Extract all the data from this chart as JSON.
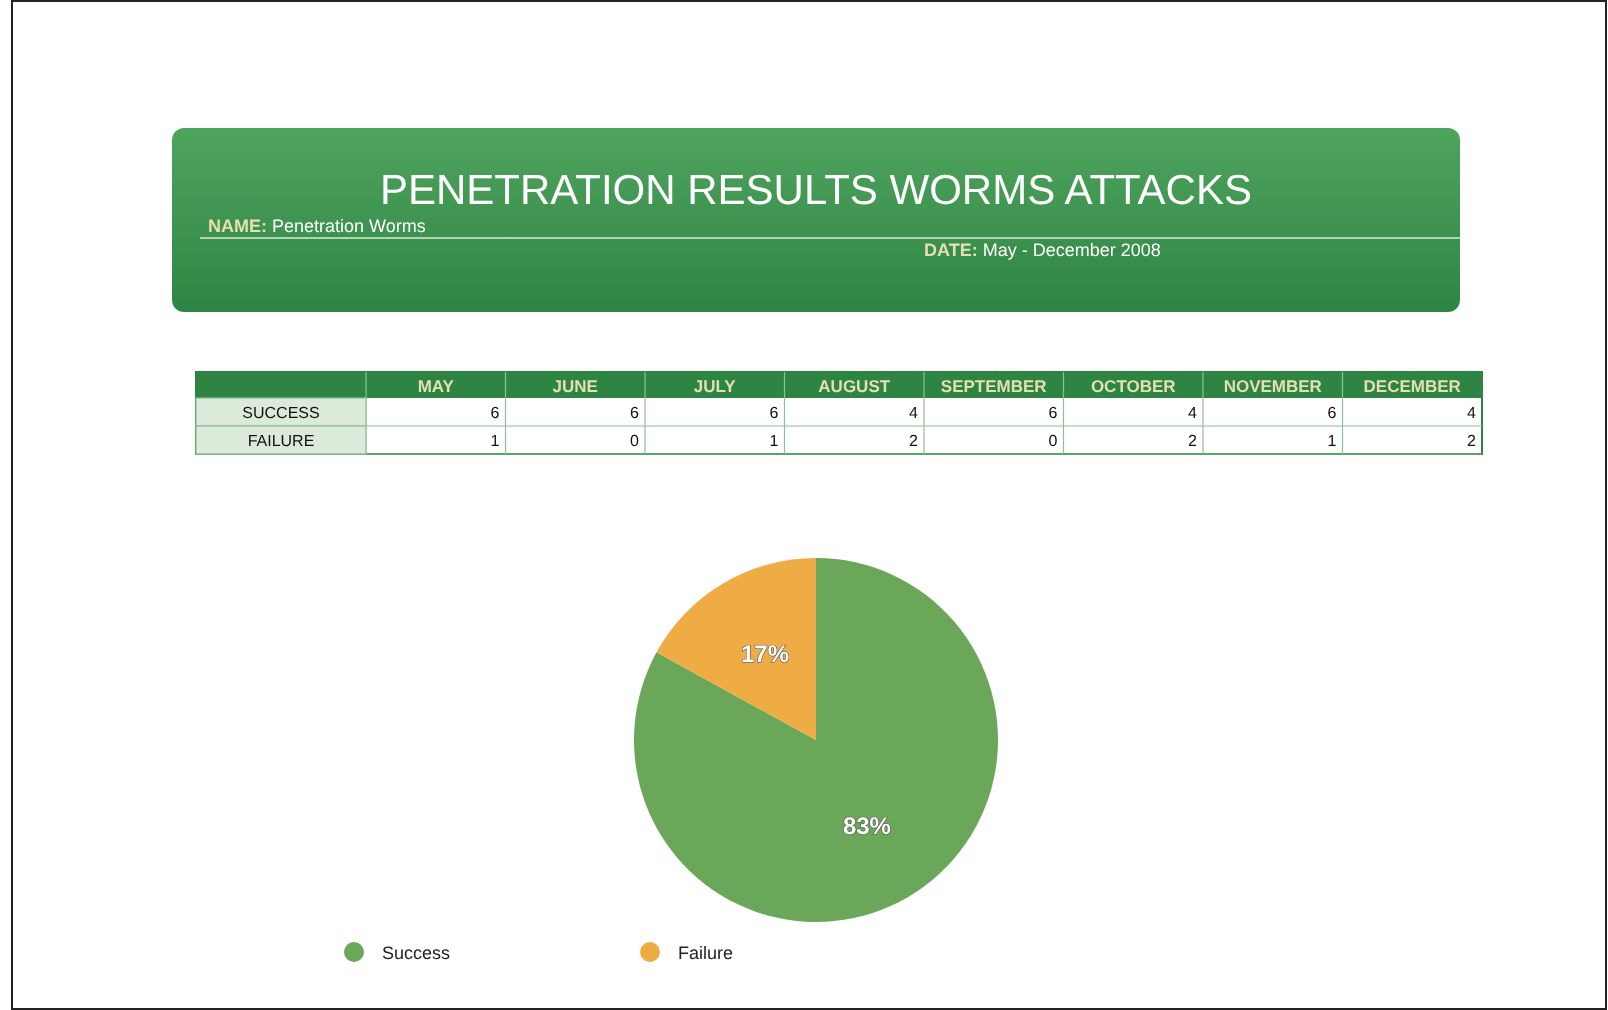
{
  "chart_data": [
    {
      "type": "other",
      "title": "PENETRATION RESULTS WORMS ATTACKS",
      "annotations": [
        "NAME: Penetration Worms",
        "DATE: May - December 2008"
      ],
      "categories": [
        "MAY",
        "JUNE",
        "JULY",
        "AUGUST",
        "SEPTEMBER",
        "OCTOBER",
        "NOVEMBER",
        "DECEMBER"
      ],
      "series": [
        {
          "name": "SUCCESS",
          "values": [
            6,
            6,
            6,
            4,
            6,
            4,
            6,
            4
          ]
        },
        {
          "name": "FAILURE",
          "values": [
            1,
            0,
            1,
            2,
            0,
            2,
            1,
            2
          ]
        }
      ],
      "data_labels": true
    },
    {
      "type": "pie",
      "categories": [
        "Success",
        "Failure"
      ],
      "values": [
        83,
        17
      ],
      "value_labels": [
        "83%",
        "17%"
      ],
      "colors": [
        "#6aa758",
        "#efac45"
      ],
      "legend": "bottom"
    }
  ]
}
